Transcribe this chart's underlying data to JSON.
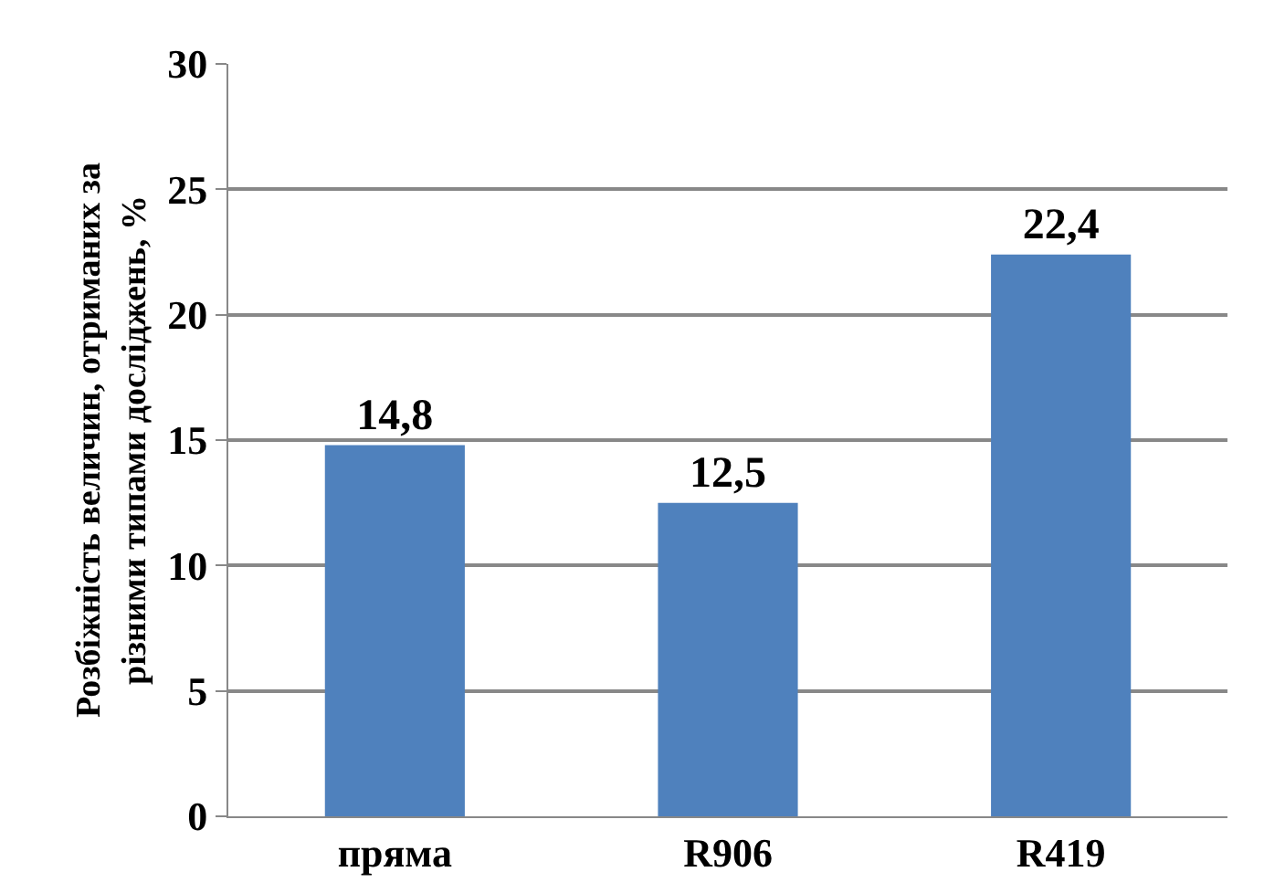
{
  "chart_data": {
    "type": "bar",
    "ylabel": "Розбіжність величин, отриманих за\nрізними типами досліджень, %",
    "categories": [
      "пряма",
      "R906",
      "R419"
    ],
    "values": [
      14.8,
      12.5,
      22.4
    ],
    "value_labels": [
      "14,8",
      "12,5",
      "22,4"
    ],
    "color": "#4f81bd",
    "ylim": [
      0,
      30
    ],
    "yticks": [
      0,
      5,
      10,
      15,
      20,
      25,
      30
    ],
    "grid": "y",
    "legend": false
  }
}
